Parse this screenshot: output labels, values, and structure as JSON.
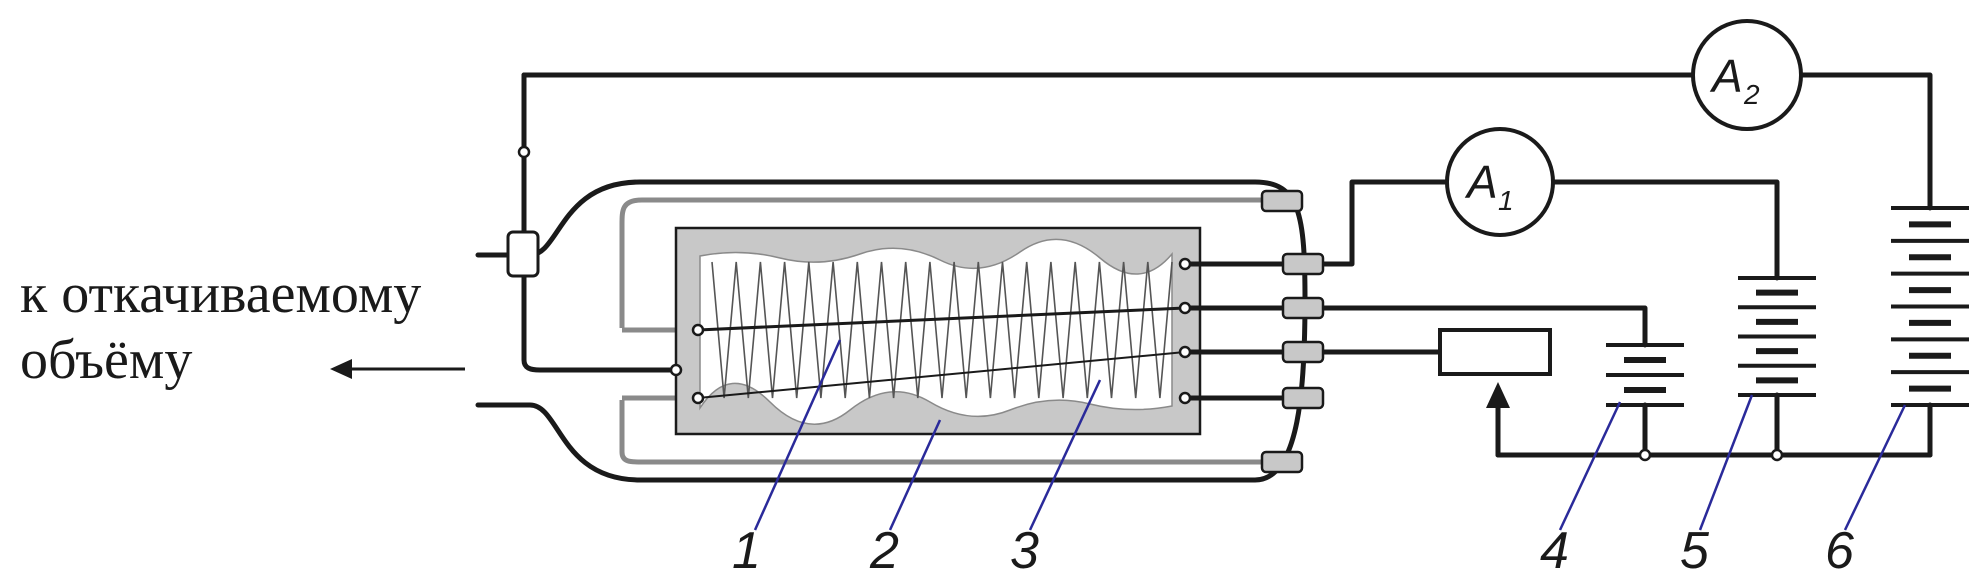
{
  "side_label": {
    "line1": "к откачиваемому",
    "line2": "объёму"
  },
  "meters": [
    {
      "letter": "A",
      "sub": "1"
    },
    {
      "letter": "A",
      "sub": "2"
    }
  ],
  "callouts": [
    "1",
    "2",
    "3",
    "4",
    "5",
    "6"
  ],
  "colors": {
    "ink": "#1a1a1a",
    "insulator_grey": "#c8c8c8",
    "leader_blue": "#2a2a9a"
  }
}
